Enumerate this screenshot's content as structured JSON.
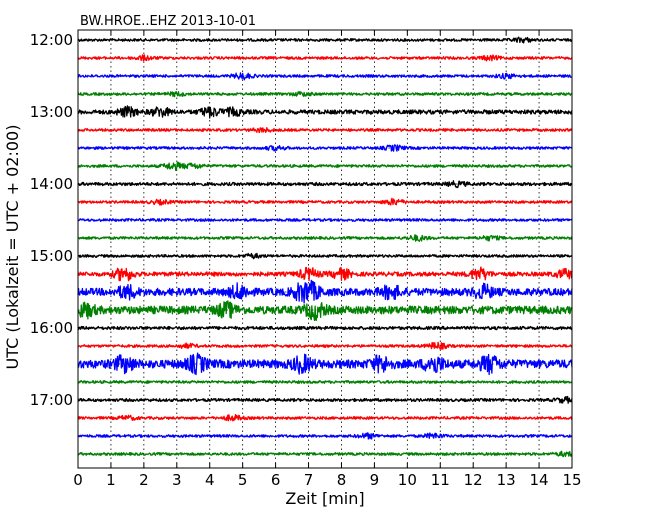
{
  "chart_data": {
    "type": "line",
    "title": "BW.HROE..EHZ 2013-10-01",
    "xlabel": "Zeit  [min]",
    "ylabel": "UTC (Lokalzeit = UTC + 02:00)",
    "xlim": [
      0,
      15
    ],
    "x_ticks": [
      "0",
      "1",
      "2",
      "3",
      "4",
      "5",
      "6",
      "7",
      "8",
      "9",
      "10",
      "11",
      "12",
      "13",
      "14",
      "15"
    ],
    "y_tick_labels": [
      "12:00",
      "13:00",
      "14:00",
      "15:00",
      "16:00",
      "17:00"
    ],
    "grid": true,
    "line_interval_min": 15,
    "color_cycle": [
      "#000000",
      "#ff0000",
      "#0000ff",
      "#008000"
    ],
    "traces": [
      {
        "start": "12:00",
        "amplitude": 1.0,
        "bursts": [
          [
            13.5,
            1.5
          ]
        ]
      },
      {
        "start": "12:15",
        "amplitude": 1.0,
        "bursts": [
          [
            2.0,
            1.5
          ],
          [
            12.5,
            1.5
          ]
        ]
      },
      {
        "start": "12:30",
        "amplitude": 1.0,
        "bursts": [
          [
            5.0,
            2.0
          ],
          [
            13.0,
            1.5
          ]
        ]
      },
      {
        "start": "12:45",
        "amplitude": 1.0,
        "bursts": [
          [
            3.0,
            1.2
          ],
          [
            6.8,
            1.2
          ]
        ]
      },
      {
        "start": "13:00",
        "amplitude": 1.6,
        "bursts": [
          [
            1.5,
            2.0
          ],
          [
            2.5,
            2.0
          ],
          [
            4.0,
            2.0
          ],
          [
            4.7,
            1.5
          ]
        ]
      },
      {
        "start": "13:15",
        "amplitude": 1.0,
        "bursts": [
          [
            5.6,
            1.3
          ]
        ]
      },
      {
        "start": "13:30",
        "amplitude": 1.0,
        "bursts": [
          [
            9.6,
            1.8
          ],
          [
            6.0,
            1.3
          ]
        ]
      },
      {
        "start": "13:45",
        "amplitude": 1.0,
        "bursts": [
          [
            2.9,
            2.5
          ],
          [
            3.5,
            1.6
          ]
        ]
      },
      {
        "start": "14:00",
        "amplitude": 1.2,
        "bursts": [
          [
            11.5,
            1.3
          ]
        ]
      },
      {
        "start": "14:15",
        "amplitude": 1.0,
        "bursts": [
          [
            9.6,
            2.0
          ],
          [
            2.5,
            1.3
          ]
        ]
      },
      {
        "start": "14:30",
        "amplitude": 1.0,
        "bursts": []
      },
      {
        "start": "14:45",
        "amplitude": 1.0,
        "bursts": [
          [
            10.3,
            1.8
          ],
          [
            12.5,
            1.4
          ]
        ]
      },
      {
        "start": "15:00",
        "amplitude": 1.0,
        "bursts": [
          [
            5.3,
            1.3
          ]
        ]
      },
      {
        "start": "15:15",
        "amplitude": 1.6,
        "bursts": [
          [
            1.4,
            3.0
          ],
          [
            7.0,
            2.5
          ],
          [
            8.0,
            2.2
          ],
          [
            12.2,
            2.6
          ],
          [
            14.8,
            1.8
          ]
        ]
      },
      {
        "start": "15:30",
        "amplitude": 2.8,
        "bursts": [
          [
            1.5,
            1.4
          ],
          [
            4.9,
            1.6
          ],
          [
            6.8,
            1.8
          ],
          [
            7.1,
            1.6
          ],
          [
            9.5,
            1.5
          ],
          [
            12.3,
            1.5
          ]
        ]
      },
      {
        "start": "15:45",
        "amplitude": 3.0,
        "bursts": [
          [
            0.2,
            1.5
          ],
          [
            4.5,
            1.5
          ],
          [
            7.2,
            1.8
          ]
        ]
      },
      {
        "start": "16:00",
        "amplitude": 1.2,
        "bursts": []
      },
      {
        "start": "16:15",
        "amplitude": 1.0,
        "bursts": [
          [
            10.9,
            2.2
          ],
          [
            3.3,
            1.3
          ]
        ]
      },
      {
        "start": "16:30",
        "amplitude": 3.2,
        "bursts": [
          [
            1.4,
            1.5
          ],
          [
            3.6,
            1.7
          ],
          [
            6.8,
            1.6
          ],
          [
            9.2,
            1.5
          ],
          [
            10.8,
            1.7
          ],
          [
            12.5,
            1.7
          ]
        ]
      },
      {
        "start": "16:45",
        "amplitude": 1.0,
        "bursts": []
      },
      {
        "start": "17:00",
        "amplitude": 1.1,
        "bursts": [
          [
            14.8,
            1.5
          ]
        ]
      },
      {
        "start": "17:15",
        "amplitude": 1.0,
        "bursts": [
          [
            4.7,
            1.8
          ],
          [
            1.5,
            1.3
          ]
        ]
      },
      {
        "start": "17:30",
        "amplitude": 1.0,
        "bursts": [
          [
            8.8,
            1.6
          ],
          [
            10.8,
            1.6
          ]
        ]
      },
      {
        "start": "17:45",
        "amplitude": 1.0,
        "bursts": [
          [
            14.8,
            1.4
          ]
        ]
      }
    ]
  }
}
